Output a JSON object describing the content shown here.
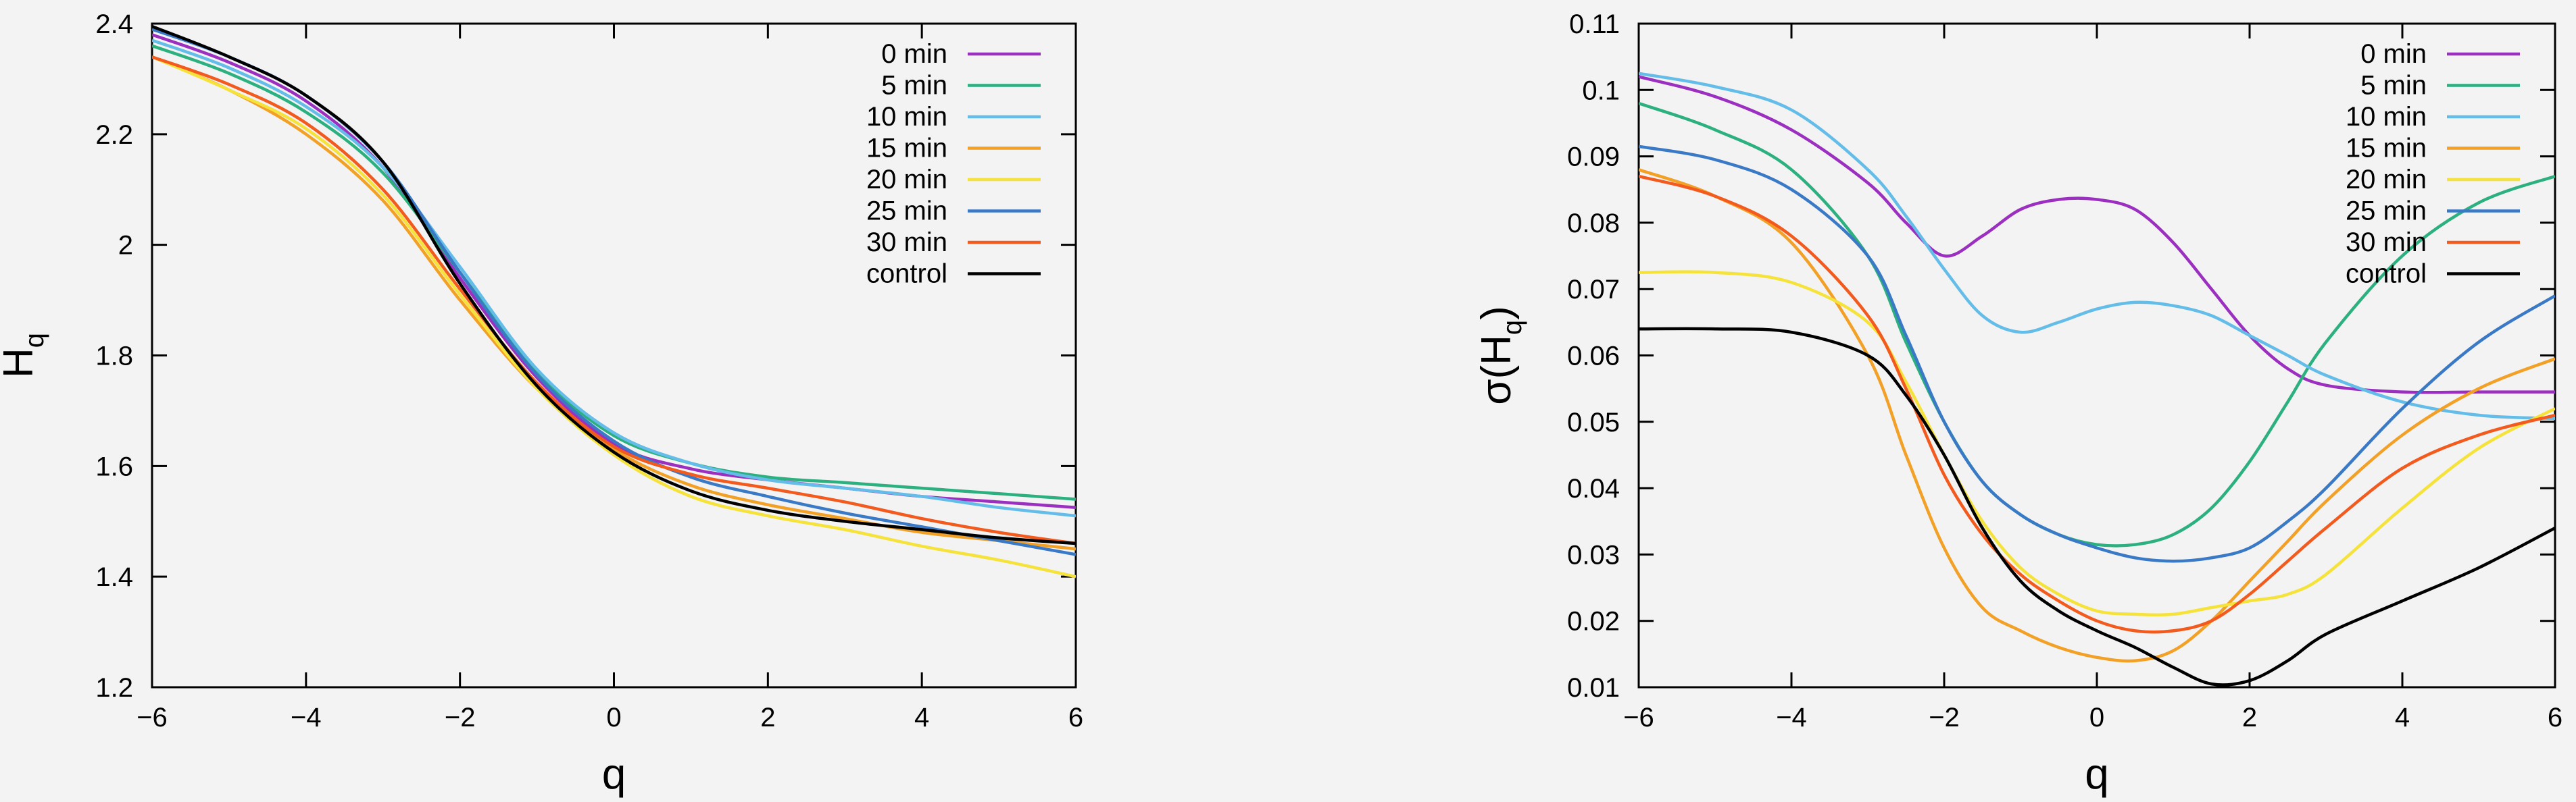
{
  "chart_data": [
    {
      "type": "line",
      "xlabel": "q",
      "ylabel": "H",
      "ylabel_sub": "q",
      "xlim": [
        -6,
        6
      ],
      "ylim": [
        1.2,
        2.4
      ],
      "xticks": [
        -6,
        -4,
        -2,
        0,
        2,
        4,
        6
      ],
      "yticks": [
        1.2,
        1.4,
        1.6,
        1.8,
        2,
        2.2,
        2.4
      ],
      "xtick_labels": [
        "−6",
        "−4",
        "−2",
        "0",
        "2",
        "4",
        "6"
      ],
      "ytick_labels": [
        "1.2",
        "1.4",
        "1.6",
        "1.8",
        "2",
        "2.2",
        "2.4"
      ],
      "grid": false,
      "legend_position": "top-right",
      "x": [
        -6,
        -5,
        -4,
        -3,
        -2,
        -1,
        0,
        1,
        2,
        3,
        4,
        5,
        6
      ],
      "series": [
        {
          "name": "0 min",
          "color": "#9b2fbf",
          "values": [
            2.38,
            2.33,
            2.26,
            2.14,
            1.94,
            1.76,
            1.64,
            1.595,
            1.575,
            1.56,
            1.545,
            1.535,
            1.525
          ]
        },
        {
          "name": "5 min",
          "color": "#2cb07f",
          "values": [
            2.36,
            2.31,
            2.24,
            2.13,
            1.95,
            1.77,
            1.655,
            1.605,
            1.58,
            1.57,
            1.56,
            1.55,
            1.54
          ]
        },
        {
          "name": "10 min",
          "color": "#63bde8",
          "values": [
            2.37,
            2.32,
            2.25,
            2.14,
            1.96,
            1.775,
            1.66,
            1.605,
            1.575,
            1.56,
            1.545,
            1.525,
            1.51
          ]
        },
        {
          "name": "15 min",
          "color": "#f2a026",
          "values": [
            2.34,
            2.28,
            2.2,
            2.08,
            1.9,
            1.74,
            1.63,
            1.565,
            1.53,
            1.505,
            1.48,
            1.465,
            1.45
          ]
        },
        {
          "name": "20 min",
          "color": "#f5e23a",
          "values": [
            2.34,
            2.28,
            2.21,
            2.09,
            1.91,
            1.74,
            1.62,
            1.545,
            1.51,
            1.485,
            1.455,
            1.43,
            1.4
          ]
        },
        {
          "name": "25 min",
          "color": "#3a79c6",
          "values": [
            2.39,
            2.34,
            2.27,
            2.15,
            1.95,
            1.765,
            1.645,
            1.58,
            1.545,
            1.515,
            1.49,
            1.465,
            1.44
          ]
        },
        {
          "name": "30 min",
          "color": "#f25a1e",
          "values": [
            2.34,
            2.29,
            2.22,
            2.1,
            1.92,
            1.75,
            1.635,
            1.585,
            1.56,
            1.535,
            1.505,
            1.48,
            1.46
          ]
        },
        {
          "name": "control",
          "color": "#000000",
          "values": [
            2.395,
            2.34,
            2.27,
            2.15,
            1.93,
            1.745,
            1.625,
            1.555,
            1.52,
            1.5,
            1.485,
            1.47,
            1.46
          ]
        }
      ]
    },
    {
      "type": "line",
      "xlabel": "q",
      "ylabel": "σ(H",
      "ylabel_sub": "q",
      "ylabel_suffix": ")",
      "xlim": [
        -6,
        6
      ],
      "ylim": [
        0.01,
        0.11
      ],
      "xticks": [
        -6,
        -4,
        -2,
        0,
        2,
        4,
        6
      ],
      "yticks": [
        0.01,
        0.02,
        0.03,
        0.04,
        0.05,
        0.06,
        0.07,
        0.08,
        0.09,
        0.1,
        0.11
      ],
      "xtick_labels": [
        "−6",
        "−4",
        "−2",
        "0",
        "2",
        "4",
        "6"
      ],
      "ytick_labels": [
        "0.01",
        "0.02",
        "0.03",
        "0.04",
        "0.05",
        "0.06",
        "0.07",
        "0.08",
        "0.09",
        "0.1",
        "0.11"
      ],
      "grid": false,
      "legend_position": "top-right",
      "series": [
        {
          "name": "0 min",
          "color": "#9b2fbf",
          "x": [
            -6,
            -5,
            -4,
            -3,
            -2.5,
            -2,
            -1.5,
            -1,
            -0.5,
            0,
            0.5,
            1,
            1.5,
            2,
            2.5,
            3,
            4,
            5,
            6
          ],
          "values": [
            0.102,
            0.099,
            0.094,
            0.086,
            0.08,
            0.075,
            0.078,
            0.082,
            0.0835,
            0.0835,
            0.082,
            0.077,
            0.07,
            0.063,
            0.058,
            0.0555,
            0.0545,
            0.0545,
            0.0545
          ]
        },
        {
          "name": "5 min",
          "color": "#2cb07f",
          "x": [
            -6,
            -5,
            -4,
            -3,
            -2.5,
            -2,
            -1.5,
            -1,
            -0.5,
            0,
            0.5,
            1,
            1.5,
            2,
            2.5,
            3,
            4,
            5,
            6
          ],
          "values": [
            0.098,
            0.094,
            0.088,
            0.075,
            0.062,
            0.05,
            0.041,
            0.036,
            0.033,
            0.0315,
            0.0315,
            0.033,
            0.037,
            0.044,
            0.053,
            0.062,
            0.075,
            0.083,
            0.087
          ]
        },
        {
          "name": "10 min",
          "color": "#63bde8",
          "x": [
            -6,
            -5,
            -4,
            -3,
            -2.5,
            -2,
            -1.5,
            -1,
            -0.5,
            0,
            0.5,
            1,
            1.5,
            2,
            2.5,
            3,
            4,
            5,
            6
          ],
          "values": [
            0.1025,
            0.1005,
            0.097,
            0.088,
            0.081,
            0.073,
            0.066,
            0.0635,
            0.065,
            0.067,
            0.068,
            0.0675,
            0.066,
            0.063,
            0.06,
            0.057,
            0.053,
            0.051,
            0.0505
          ]
        },
        {
          "name": "15 min",
          "color": "#f2a026",
          "x": [
            -6,
            -5,
            -4,
            -3,
            -2.5,
            -2,
            -1.5,
            -1,
            -0.5,
            0,
            0.5,
            1,
            1.5,
            2,
            2.5,
            3,
            4,
            5,
            6
          ],
          "values": [
            0.088,
            0.084,
            0.077,
            0.06,
            0.045,
            0.031,
            0.022,
            0.0185,
            0.016,
            0.0145,
            0.014,
            0.0155,
            0.02,
            0.026,
            0.032,
            0.038,
            0.048,
            0.055,
            0.0595
          ]
        },
        {
          "name": "20 min",
          "color": "#f5e23a",
          "x": [
            -6,
            -5,
            -4,
            -3,
            -2.5,
            -2,
            -1.5,
            -1,
            -0.5,
            0,
            0.5,
            1,
            1.5,
            2,
            2.5,
            3,
            4,
            5,
            6
          ],
          "values": [
            0.0725,
            0.0725,
            0.071,
            0.065,
            0.056,
            0.045,
            0.035,
            0.028,
            0.024,
            0.0215,
            0.021,
            0.021,
            0.022,
            0.023,
            0.024,
            0.027,
            0.037,
            0.046,
            0.052
          ]
        },
        {
          "name": "25 min",
          "color": "#3a79c6",
          "x": [
            -6,
            -5,
            -4,
            -3,
            -2.5,
            -2,
            -1.5,
            -1,
            -0.5,
            0,
            0.5,
            1,
            1.5,
            2,
            2.5,
            3,
            4,
            5,
            6
          ],
          "values": [
            0.0915,
            0.0895,
            0.085,
            0.075,
            0.063,
            0.05,
            0.041,
            0.036,
            0.033,
            0.031,
            0.0295,
            0.029,
            0.0295,
            0.031,
            0.035,
            0.04,
            0.052,
            0.062,
            0.069
          ]
        },
        {
          "name": "30 min",
          "color": "#f25a1e",
          "x": [
            -6,
            -5,
            -4,
            -3,
            -2.5,
            -2,
            -1.5,
            -1,
            -0.5,
            0,
            0.5,
            1,
            1.5,
            2,
            2.5,
            3,
            4,
            5,
            6
          ],
          "values": [
            0.087,
            0.084,
            0.078,
            0.066,
            0.055,
            0.042,
            0.033,
            0.027,
            0.023,
            0.02,
            0.0185,
            0.0185,
            0.02,
            0.024,
            0.029,
            0.034,
            0.043,
            0.048,
            0.051
          ]
        },
        {
          "name": "control",
          "color": "#000000",
          "x": [
            -6,
            -5,
            -4,
            -3,
            -2.5,
            -2,
            -1.5,
            -1,
            -0.5,
            0,
            0.5,
            1,
            1.5,
            2,
            2.5,
            3,
            4,
            5,
            6
          ],
          "values": [
            0.064,
            0.064,
            0.0635,
            0.06,
            0.054,
            0.045,
            0.034,
            0.026,
            0.0215,
            0.0185,
            0.016,
            0.013,
            0.0105,
            0.011,
            0.014,
            0.018,
            0.023,
            0.028,
            0.034
          ]
        }
      ]
    }
  ]
}
